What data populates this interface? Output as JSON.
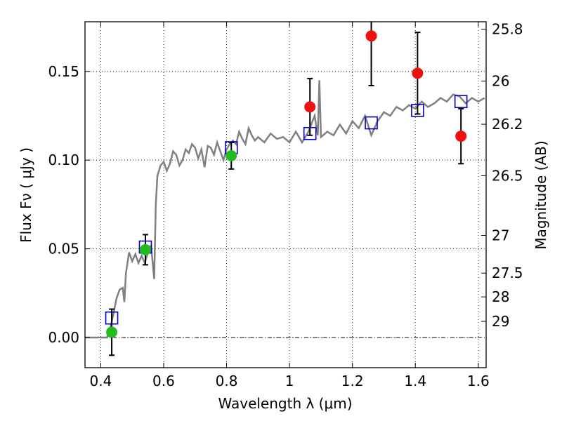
{
  "chart_data": {
    "type": "scatter",
    "xlabel": "Wavelength  λ (μm)",
    "ylabel": "Flux  Fν  ( μJy )",
    "y2label": "Magnitude (AB)",
    "xlim": [
      0.35,
      1.625
    ],
    "ylim": [
      -0.017,
      0.178
    ],
    "grid": true,
    "x_ticks": [
      0.4,
      0.6,
      0.8,
      1.0,
      1.2,
      1.4,
      1.6
    ],
    "x_tick_labels": [
      "0.4",
      "0.6",
      "0.8",
      "1",
      "1.2",
      "1.4",
      "1.6"
    ],
    "y_ticks": [
      0.0,
      0.05,
      0.1,
      0.15
    ],
    "y_tick_labels": [
      "0.00",
      "0.05",
      "0.10",
      "0.15"
    ],
    "mag_ticks": [
      25.8,
      26,
      26.2,
      26.5,
      27,
      27.5,
      28,
      29
    ],
    "mag_tick_labels": [
      "25.8",
      "26",
      "26.2",
      "26.5",
      "27",
      "27.5",
      "28",
      "29"
    ],
    "colors": {
      "spectrum": "#808080",
      "model_squares": "#0000cc",
      "green_points": "#22bb22",
      "red_points": "#ee1111",
      "errorbar": "#000000"
    },
    "spectrum": {
      "x": [
        0.35,
        0.38,
        0.4,
        0.42,
        0.43,
        0.44,
        0.45,
        0.46,
        0.47,
        0.475,
        0.48,
        0.49,
        0.5,
        0.51,
        0.52,
        0.53,
        0.54,
        0.55,
        0.56,
        0.57,
        0.575,
        0.58,
        0.59,
        0.6,
        0.61,
        0.62,
        0.63,
        0.64,
        0.65,
        0.66,
        0.67,
        0.68,
        0.69,
        0.7,
        0.71,
        0.72,
        0.73,
        0.74,
        0.75,
        0.76,
        0.77,
        0.78,
        0.79,
        0.8,
        0.81,
        0.82,
        0.83,
        0.84,
        0.85,
        0.86,
        0.87,
        0.88,
        0.89,
        0.9,
        0.92,
        0.94,
        0.96,
        0.98,
        1.0,
        1.02,
        1.04,
        1.06,
        1.08,
        1.09,
        1.095,
        1.1,
        1.12,
        1.14,
        1.16,
        1.18,
        1.2,
        1.22,
        1.24,
        1.26,
        1.28,
        1.3,
        1.32,
        1.34,
        1.36,
        1.38,
        1.4,
        1.42,
        1.44,
        1.46,
        1.48,
        1.5,
        1.52,
        1.54,
        1.56,
        1.58,
        1.6,
        1.62
      ],
      "y": [
        0.0,
        0.0,
        0.0,
        0.0,
        0.005,
        0.013,
        0.022,
        0.027,
        0.028,
        0.02,
        0.036,
        0.048,
        0.043,
        0.047,
        0.042,
        0.046,
        0.042,
        0.048,
        0.052,
        0.033,
        0.075,
        0.091,
        0.097,
        0.099,
        0.094,
        0.098,
        0.105,
        0.103,
        0.097,
        0.1,
        0.106,
        0.104,
        0.109,
        0.107,
        0.101,
        0.106,
        0.096,
        0.108,
        0.107,
        0.103,
        0.11,
        0.105,
        0.1,
        0.106,
        0.109,
        0.111,
        0.109,
        0.116,
        0.112,
        0.109,
        0.118,
        0.114,
        0.111,
        0.113,
        0.11,
        0.115,
        0.112,
        0.113,
        0.11,
        0.116,
        0.11,
        0.116,
        0.125,
        0.114,
        0.145,
        0.113,
        0.116,
        0.114,
        0.12,
        0.115,
        0.122,
        0.118,
        0.125,
        0.114,
        0.122,
        0.127,
        0.125,
        0.13,
        0.128,
        0.131,
        0.129,
        0.133,
        0.13,
        0.132,
        0.135,
        0.133,
        0.137,
        0.136,
        0.132,
        0.135,
        0.133,
        0.135
      ]
    },
    "model_squares": [
      {
        "x": 0.435,
        "y": 0.011
      },
      {
        "x": 0.542,
        "y": 0.051
      },
      {
        "x": 0.815,
        "y": 0.107
      },
      {
        "x": 1.065,
        "y": 0.115
      },
      {
        "x": 1.26,
        "y": 0.121
      },
      {
        "x": 1.407,
        "y": 0.128
      },
      {
        "x": 1.545,
        "y": 0.133
      }
    ],
    "green_points": [
      {
        "x": 0.435,
        "y": 0.003,
        "err": 0.013
      },
      {
        "x": 0.542,
        "y": 0.0495,
        "err": 0.0085
      },
      {
        "x": 0.815,
        "y": 0.1025,
        "err": 0.0075
      }
    ],
    "red_points": [
      {
        "x": 1.065,
        "y": 0.13,
        "err": 0.016
      },
      {
        "x": 1.26,
        "y": 0.17,
        "err": 0.028
      },
      {
        "x": 1.407,
        "y": 0.149,
        "err": 0.023
      },
      {
        "x": 1.545,
        "y": 0.1135,
        "err": 0.0155
      }
    ]
  }
}
